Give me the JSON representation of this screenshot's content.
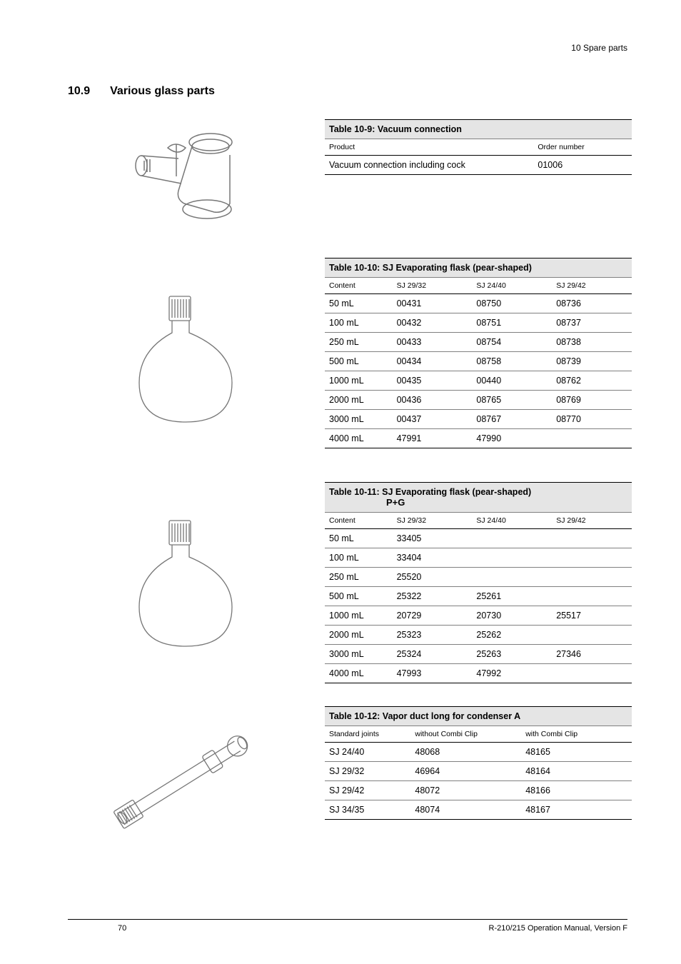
{
  "header": {
    "breadcrumb": "10   Spare parts"
  },
  "section": {
    "number": "10.9",
    "title": "Various glass parts"
  },
  "table9": {
    "title": "Table 10-9: Vacuum connection",
    "columns": [
      "Product",
      "Order number"
    ],
    "rows": [
      [
        "Vacuum connection including cock",
        "01006"
      ]
    ]
  },
  "table10": {
    "title": "Table 10-10: SJ Evaporating flask (pear-shaped)",
    "columns": [
      "Content",
      "SJ 29/32",
      "SJ 24/40",
      "SJ 29/42"
    ],
    "rows": [
      [
        "50 mL",
        "00431",
        "08750",
        "08736"
      ],
      [
        "100 mL",
        "00432",
        "08751",
        "08737"
      ],
      [
        "250 mL",
        "00433",
        "08754",
        "08738"
      ],
      [
        "500 mL",
        "00434",
        "08758",
        "08739"
      ],
      [
        "1000 mL",
        "00435",
        "00440",
        "08762"
      ],
      [
        "2000 mL",
        "00436",
        "08765",
        "08769"
      ],
      [
        "3000 mL",
        "00437",
        "08767",
        "08770"
      ],
      [
        "4000 mL",
        "47991",
        "47990",
        ""
      ]
    ]
  },
  "table11": {
    "title": "Table 10-11: SJ Evaporating flask (pear-shaped)",
    "subtitle": "P+G",
    "columns": [
      "Content",
      "SJ 29/32",
      "SJ 24/40",
      "SJ 29/42"
    ],
    "rows": [
      [
        "50 mL",
        "33405",
        "",
        ""
      ],
      [
        "100 mL",
        "33404",
        "",
        ""
      ],
      [
        "250 mL",
        "25520",
        "",
        ""
      ],
      [
        "500 mL",
        "25322",
        "25261",
        ""
      ],
      [
        "1000 mL",
        "20729",
        "20730",
        "25517"
      ],
      [
        "2000 mL",
        "25323",
        "25262",
        ""
      ],
      [
        "3000 mL",
        "25324",
        "25263",
        "27346"
      ],
      [
        "4000 mL",
        "47993",
        "47992",
        ""
      ]
    ]
  },
  "table12": {
    "title": "Table 10-12: Vapor duct long for condenser A",
    "columns": [
      "Standard joints",
      "without Combi Clip",
      "with Combi Clip"
    ],
    "rows": [
      [
        "SJ 24/40",
        "48068",
        "48165"
      ],
      [
        "SJ 29/32",
        "46964",
        "48164"
      ],
      [
        "SJ 29/42",
        "48072",
        "48166"
      ],
      [
        "SJ 34/35",
        "48074",
        "48167"
      ]
    ]
  },
  "footer": {
    "page": "70",
    "manual": "R-210/215 Operation Manual, Version F"
  },
  "style": {
    "col_widths_4": [
      "22%",
      "26%",
      "26%",
      "26%"
    ],
    "col_widths_3": [
      "28%",
      "36%",
      "36%"
    ],
    "svg_stroke": "#666666"
  }
}
